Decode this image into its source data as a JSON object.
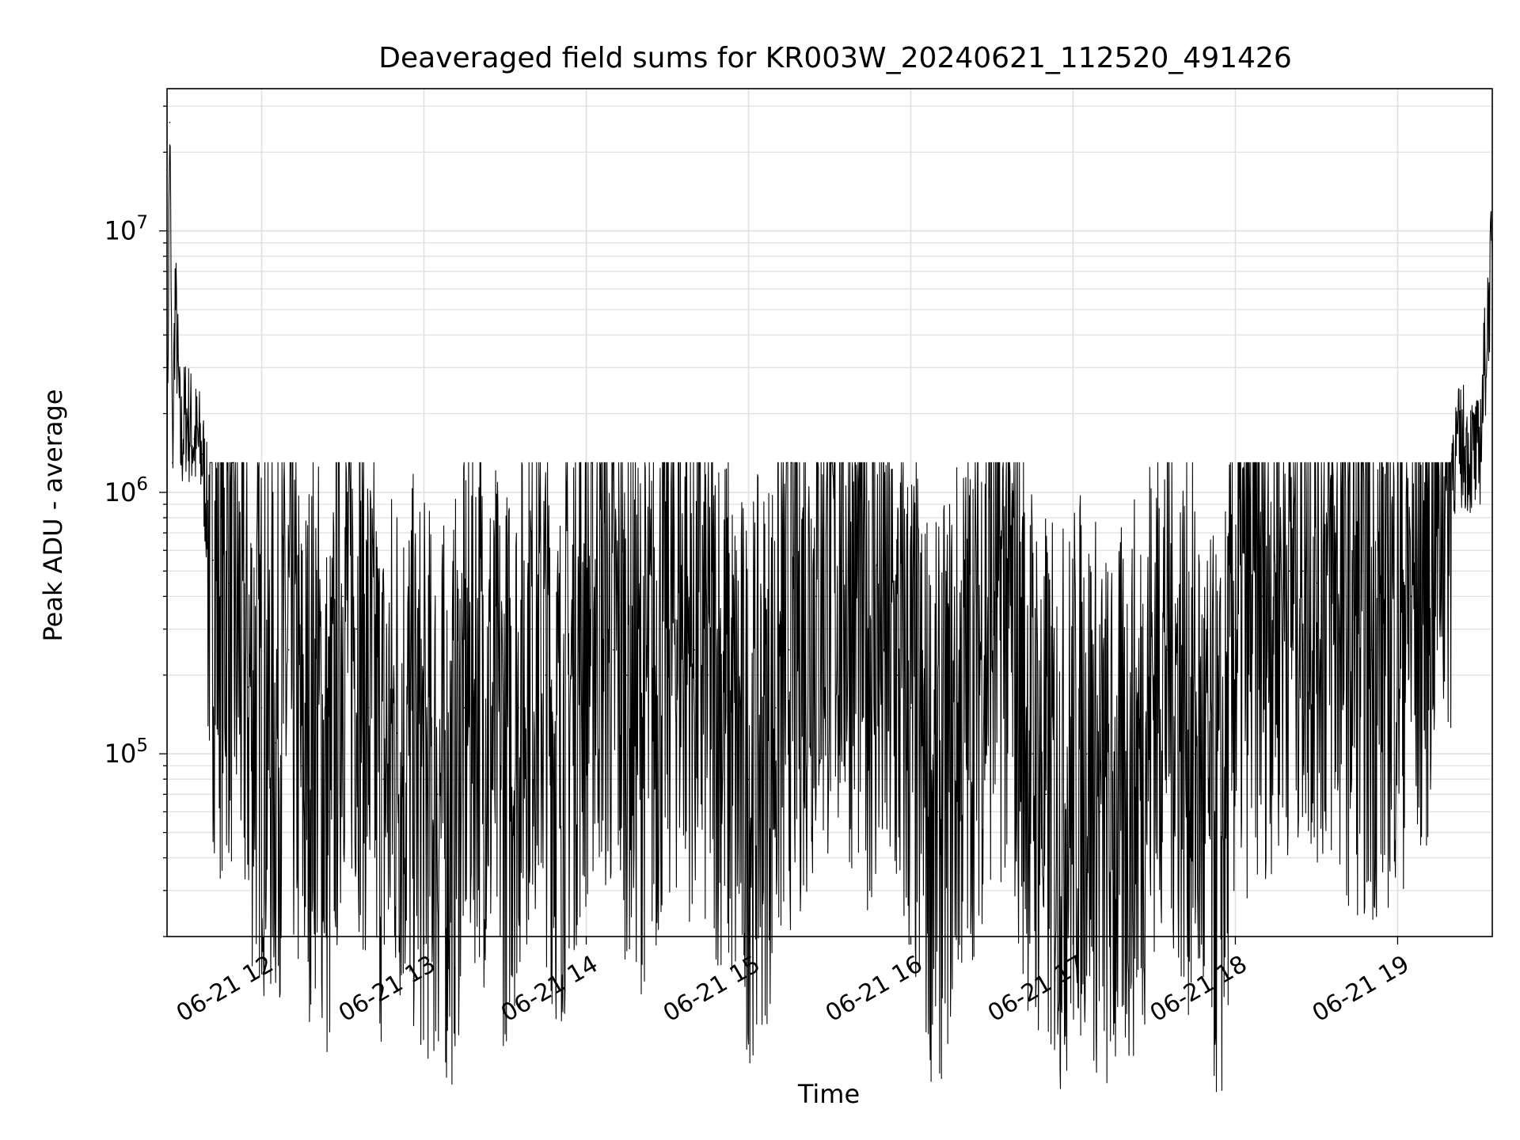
{
  "chart_data": {
    "type": "line",
    "title": "Deaveraged field sums for KR003W_20240621_112520_491426",
    "xlabel": "Time",
    "ylabel": "Peak ADU - average",
    "yscale": "log",
    "ylim": [
      20000,
      35000000
    ],
    "xlim": [
      "2024-06-21 11:25",
      "2024-06-21 19:35"
    ],
    "grid": true,
    "line_color": "#000000",
    "grid_color": "#e0e0e0",
    "x_tick_labels": [
      "06-21 12",
      "06-21 13",
      "06-21 14",
      "06-21 15",
      "06-21 16",
      "06-21 17",
      "06-21 18",
      "06-21 19"
    ],
    "y_tick_labels": [
      {
        "base": "10",
        "exp": "5",
        "value": 100000
      },
      {
        "base": "10",
        "exp": "6",
        "value": 1000000
      },
      {
        "base": "10",
        "exp": "7",
        "value": 10000000
      }
    ],
    "series": [
      {
        "x": [
          "11:25",
          "11:26",
          "11:27",
          "11:28",
          "11:30",
          "11:32",
          "11:35",
          "11:38",
          "11:40",
          "11:42",
          "11:45",
          "11:48",
          "11:50",
          "11:55",
          "12:00",
          "12:05",
          "12:10",
          "12:15",
          "12:20",
          "12:25",
          "12:30",
          "12:35",
          "12:40",
          "12:45",
          "12:50",
          "12:55",
          "13:00",
          "13:05",
          "13:10",
          "13:15",
          "13:20",
          "13:25",
          "13:30",
          "13:35",
          "13:40",
          "13:45",
          "13:50",
          "13:55",
          "14:00",
          "14:05",
          "14:10",
          "14:15",
          "14:20",
          "14:25",
          "14:30",
          "14:35",
          "14:40",
          "14:45",
          "14:50",
          "14:55",
          "15:00",
          "15:05",
          "15:10",
          "15:15",
          "15:20",
          "15:25",
          "15:30",
          "15:35",
          "15:40",
          "15:45",
          "15:50",
          "15:55",
          "16:00",
          "16:05",
          "16:10",
          "16:15",
          "16:20",
          "16:25",
          "16:30",
          "16:35",
          "16:40",
          "16:45",
          "16:50",
          "16:55",
          "17:00",
          "17:05",
          "17:10",
          "17:15",
          "17:20",
          "17:25",
          "17:30",
          "17:35",
          "17:40",
          "17:45",
          "17:50",
          "17:55",
          "18:00",
          "18:05",
          "18:10",
          "18:15",
          "18:20",
          "18:25",
          "18:30",
          "18:35",
          "18:40",
          "18:45",
          "18:50",
          "18:55",
          "19:00",
          "19:05",
          "19:10",
          "19:15",
          "19:20",
          "19:25",
          "19:30",
          "19:34",
          "19:35"
        ],
        "y": [
          1200000,
          26000000,
          1300000,
          5800000,
          1500000,
          2000000,
          1600000,
          1400000,
          800000,
          550000,
          400000,
          450000,
          350000,
          180000,
          150000,
          110000,
          250000,
          90000,
          150000,
          60000,
          400000,
          300000,
          150000,
          80000,
          120000,
          100000,
          80000,
          70000,
          60000,
          150000,
          200000,
          120000,
          90000,
          150000,
          300000,
          200000,
          90000,
          200000,
          300000,
          400000,
          250000,
          200000,
          150000,
          180000,
          300000,
          350000,
          250000,
          200000,
          180000,
          100000,
          80000,
          100000,
          150000,
          250000,
          300000,
          400000,
          450000,
          500000,
          400000,
          300000,
          250000,
          200000,
          150000,
          80000,
          60000,
          100000,
          150000,
          250000,
          350000,
          400000,
          200000,
          100000,
          70000,
          60000,
          80000,
          100000,
          60000,
          50000,
          70000,
          90000,
          200000,
          250000,
          150000,
          100000,
          60000,
          50000,
          300000,
          350000,
          400000,
          450000,
          500000,
          500000,
          450000,
          400000,
          350000,
          300000,
          250000,
          300000,
          350000,
          400000,
          450000,
          1200000,
          1400000,
          1500000,
          1300000,
          6000000,
          7800000
        ]
      }
    ]
  }
}
